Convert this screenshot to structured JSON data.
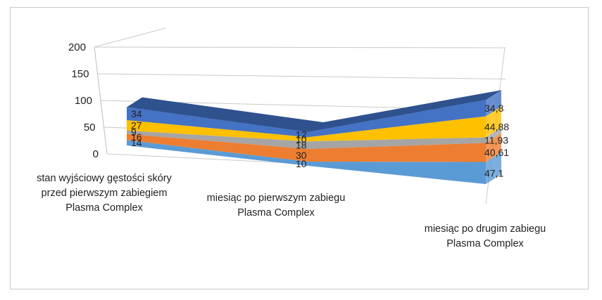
{
  "chart_data": {
    "type": "area",
    "three_d": true,
    "stacked": true,
    "categories": [
      "stan wyjściowy gęstości skóry przed pierwszym zabiegiem Plasma Complex",
      "miesiąc po pierwszym zabiegu Plasma Complex",
      "miesiąc po drugim zabiegu Plasma Complex"
    ],
    "y_ticks": [
      "0",
      "50",
      "100",
      "150",
      "200"
    ],
    "ylim": [
      0,
      200
    ],
    "grid": true,
    "legend": "none",
    "series": [
      {
        "values": [
          14,
          10,
          47.1
        ],
        "labels": [
          "14",
          "10",
          "47,1"
        ],
        "color": "#5b9bd5"
      },
      {
        "values": [
          16,
          30,
          40.61
        ],
        "labels": [
          "16",
          "30",
          "40,61"
        ],
        "color": "#ed7d31"
      },
      {
        "values": [
          9,
          18,
          11.93
        ],
        "labels": [
          "9",
          "18",
          "11,93"
        ],
        "color": "#a5a5a5"
      },
      {
        "values": [
          27,
          10,
          44.88
        ],
        "labels": [
          "27",
          "10",
          "44,88"
        ],
        "color": "#ffc000"
      },
      {
        "values": [
          34,
          12,
          34.8
        ],
        "labels": [
          "34",
          "12",
          "34,8"
        ],
        "color": "#4472c4"
      }
    ]
  }
}
